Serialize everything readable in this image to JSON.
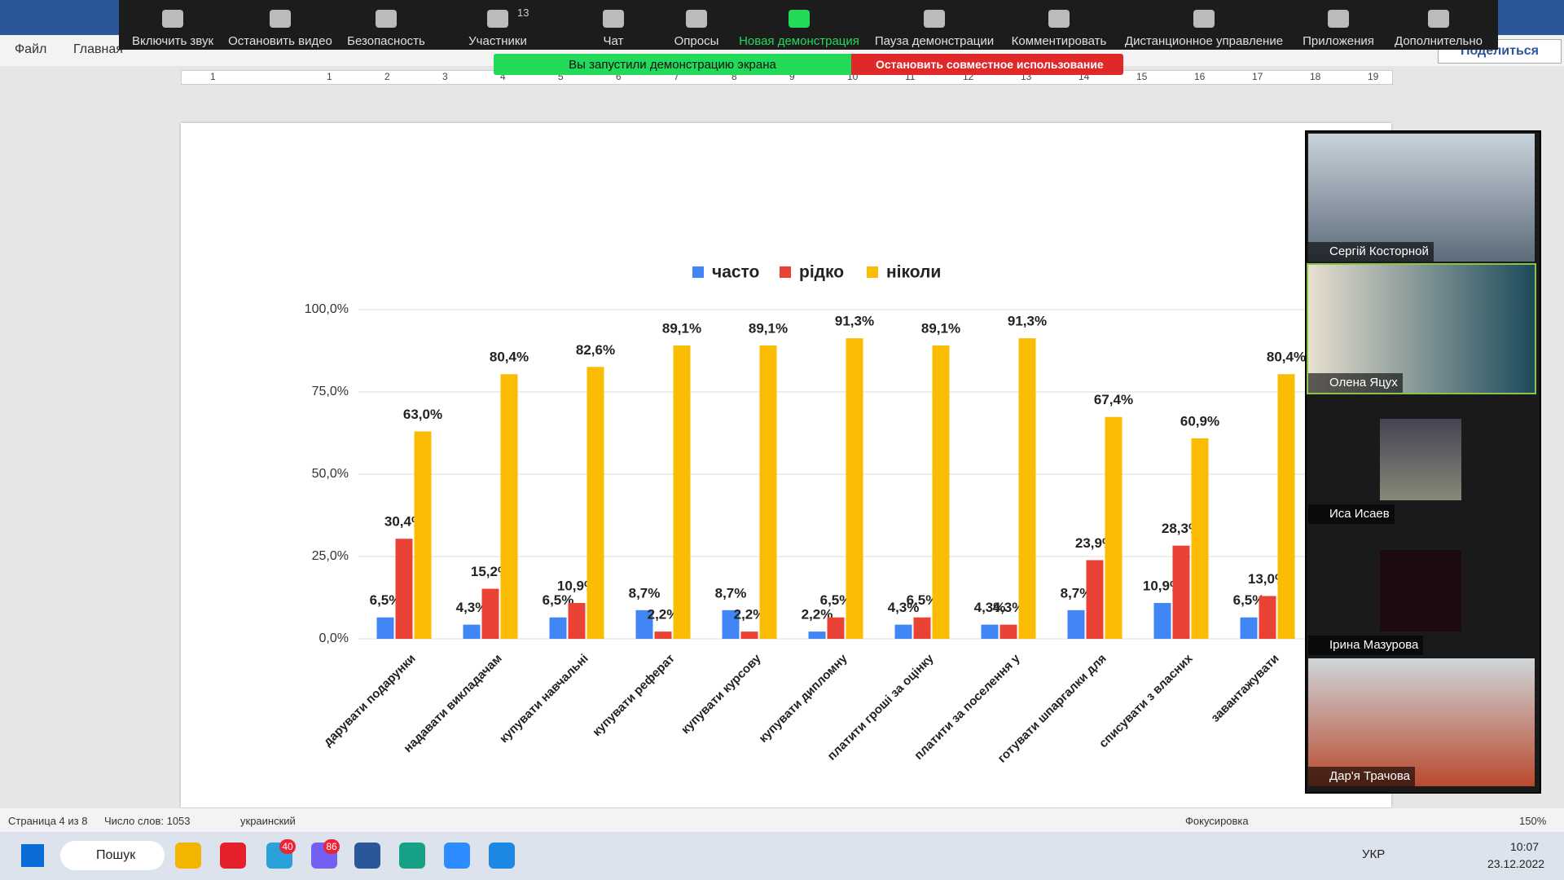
{
  "zoom_toolbar": {
    "items": [
      "Включить звук",
      "Остановить видео",
      "Безопасность",
      "Участники",
      "Чат",
      "Опросы",
      "Новая демонстрация",
      "Пауза демонстрации",
      "Комментировать",
      "Дистанционное управление",
      "Приложения",
      "Дополнительно"
    ],
    "participants_count": "13",
    "share_banner": "Вы запустили демонстрацию экрана",
    "stop_share": "Остановить совместное использование"
  },
  "word": {
    "menu": [
      "Файл",
      "Главная"
    ],
    "share": "Поделиться",
    "ruler": [
      "1",
      "1",
      "2",
      "3",
      "4",
      "5",
      "6",
      "7",
      "8",
      "9",
      "10",
      "11",
      "12",
      "13",
      "14",
      "15",
      "16",
      "17",
      "18",
      "19"
    ],
    "status": {
      "page": "Страница 4 из 8",
      "words": "Число слов: 1053",
      "language": "украинский",
      "focus": "Фокусировка",
      "zoom": "150%"
    }
  },
  "chart_data": {
    "type": "bar",
    "categories": [
      "дарувати подарунки",
      "надавати викладачам",
      "купувати навчальні",
      "купувати реферат",
      "купувати курсову",
      "купувати дипломну",
      "платити гроші за оцінку",
      "платити за поселення у",
      "готувати шпаргалки для",
      "списувати з власних",
      "завантажувати"
    ],
    "series": [
      {
        "name": "часто",
        "color": "#4285f4",
        "values": [
          6.5,
          4.3,
          6.5,
          8.7,
          8.7,
          2.2,
          4.3,
          4.3,
          8.7,
          10.9,
          6.5
        ],
        "value_labels": [
          "6,5%",
          "4,3%",
          "6,5%",
          "8,7%",
          "8,7%",
          "2,2%",
          "4,3%",
          "4,3%",
          "8,7%",
          "10,9%",
          "6,5%"
        ]
      },
      {
        "name": "рідко",
        "color": "#ea4335",
        "values": [
          30.4,
          15.2,
          10.9,
          2.2,
          2.2,
          6.5,
          6.5,
          4.3,
          23.9,
          28.3,
          13.0
        ],
        "value_labels": [
          "30,4%",
          "15,2%",
          "10,9%",
          "2,2%",
          "2,2%",
          "6,5%",
          "6,5%",
          "4,3%",
          "23,9%",
          "28,3%",
          "13,0%"
        ]
      },
      {
        "name": "ніколи",
        "color": "#fbbc04",
        "values": [
          63.0,
          80.4,
          82.6,
          89.1,
          89.1,
          91.3,
          89.1,
          91.3,
          67.4,
          60.9,
          80.4
        ],
        "value_labels": [
          "63,0%",
          "80,4%",
          "82,6%",
          "89,1%",
          "89,1%",
          "91,3%",
          "89,1%",
          "91,3%",
          "67,4%",
          "60,9%",
          "80,4%"
        ]
      }
    ],
    "ylim": [
      0,
      100
    ],
    "yticks": [
      {
        "value": 0,
        "label": "0,0%"
      },
      {
        "value": 25,
        "label": "25,0%"
      },
      {
        "value": 50,
        "label": "50,0%"
      },
      {
        "value": 75,
        "label": "75,0%"
      },
      {
        "value": 100,
        "label": "100,0%"
      }
    ],
    "grid": true,
    "legend": "top"
  },
  "participants": [
    "Сергій Косторной",
    "Олена Яцух",
    "Иса Исаев",
    "Ірина Мазурова",
    "Дар'я Трачова"
  ],
  "taskbar": {
    "search": "Пошук",
    "badges": [
      "40",
      "86"
    ],
    "language": "УКР",
    "time": "10:07",
    "date": "23.12.2022"
  }
}
